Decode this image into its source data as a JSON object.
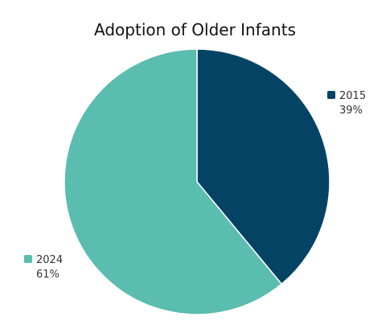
{
  "chart_data": {
    "type": "pie",
    "title": "Adoption of Older Infants",
    "slices": [
      {
        "label": "2015",
        "value": 39,
        "value_label": "39%",
        "color": "#044364"
      },
      {
        "label": "2024",
        "value": 61,
        "value_label": "61%",
        "color": "#5bbcb0"
      }
    ],
    "start": "12 o'clock",
    "direction": "clockwise",
    "slice_border_color": "#ffffff"
  }
}
